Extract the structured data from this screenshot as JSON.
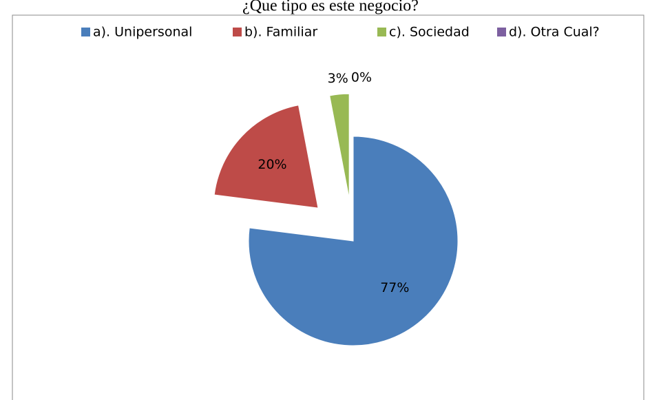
{
  "chart_data": {
    "type": "pie",
    "title": "¿Que tipo es este negocio?",
    "categories": [
      "a). Unipersonal",
      "b). Familiar",
      "c). Sociedad",
      "d). Otra Cual?"
    ],
    "values": [
      77,
      20,
      3,
      0
    ],
    "value_labels": [
      "77%",
      "20%",
      "3%",
      "0%"
    ],
    "colors": [
      "#4a7ebb",
      "#be4b48",
      "#98b954",
      "#7d60a0"
    ],
    "legend": "top"
  }
}
